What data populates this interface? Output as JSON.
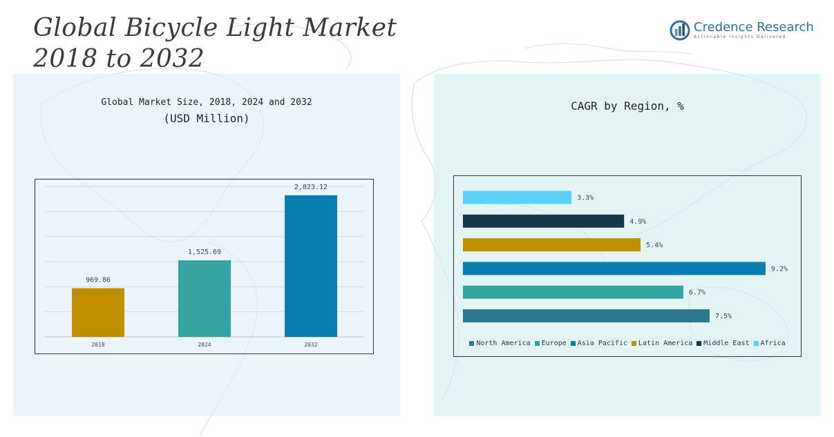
{
  "header": {
    "title_line1": "Global Bicycle Light Market",
    "title_line2": "2018 to 2032"
  },
  "logo": {
    "name": "Credence Research",
    "tagline": "Actionable Insights Delivered"
  },
  "colors": {
    "gold": "#c08f00",
    "teal": "#35a3a0",
    "blue": "#0a7eaf",
    "north_america": "#2e7791",
    "dark_navy": "#17384a",
    "light_blue": "#5dd0f5"
  },
  "chart_data": [
    {
      "type": "bar",
      "title": "Global Market Size, 2018, 2024 and 2032",
      "subtitle": "(USD Million)",
      "categories": [
        "2018",
        "2024",
        "2032"
      ],
      "values": [
        969.86,
        1525.69,
        2823.12
      ],
      "value_labels": [
        "969.86",
        "1,525.69",
        "2,823.12"
      ],
      "bar_colors": [
        "#c08f00",
        "#35a3a0",
        "#0a7eaf"
      ],
      "ylim": [
        0,
        3000
      ],
      "grid": true,
      "y_axis_visible": false
    },
    {
      "type": "bar",
      "orientation": "horizontal",
      "title": "CAGR by Region, %",
      "categories": [
        "Africa",
        "Middle East",
        "Latin America",
        "Asia Pacific",
        "Europe",
        "North America"
      ],
      "values": [
        3.3,
        4.9,
        5.4,
        9.2,
        6.7,
        7.5
      ],
      "value_labels": [
        "3.3%",
        "4.9%",
        "5.4%",
        "9.2%",
        "6.7%",
        "7.5%"
      ],
      "bar_colors": [
        "#5dd0f5",
        "#17384a",
        "#c08f00",
        "#0a7eaf",
        "#35a3a0",
        "#2e7791"
      ],
      "xlim": [
        0,
        10
      ],
      "grid": false,
      "legend": {
        "position": "bottom",
        "items": [
          {
            "label": "North America",
            "color": "#2e7791"
          },
          {
            "label": "Europe",
            "color": "#35a3a0"
          },
          {
            "label": "Asia Pacific",
            "color": "#0a7eaf"
          },
          {
            "label": "Latin America",
            "color": "#c08f00"
          },
          {
            "label": "Middle East",
            "color": "#17384a"
          },
          {
            "label": "Africa",
            "color": "#5dd0f5"
          }
        ]
      }
    }
  ]
}
